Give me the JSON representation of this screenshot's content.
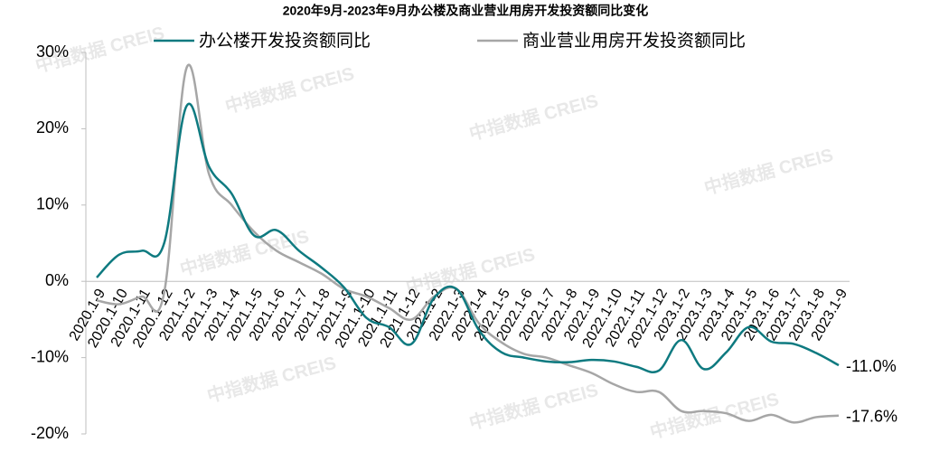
{
  "chart_data": {
    "type": "line",
    "title": "2020年9月-2023年9月办公楼及商业营业用房开发投资额同比变化",
    "watermark": "中指数据 CREIS",
    "categories": [
      "2020.1-9",
      "2020.1-10",
      "2020.1-11",
      "2020.1-12",
      "2021.1-2",
      "2021.1-3",
      "2021.1-4",
      "2021.1-5",
      "2021.1-6",
      "2021.1-7",
      "2021.1-8",
      "2021.1-9",
      "2021.1-10",
      "2021.1-11",
      "2021.1-12",
      "2022.1-2",
      "2022.1-3",
      "2022.1-4",
      "2022.1-5",
      "2022.1-6",
      "2022.1-7",
      "2022.1-8",
      "2022.1-9",
      "2022.1-10",
      "2022.1-11",
      "2022.1-12",
      "2023.1-2",
      "2023.1-3",
      "2023.1-4",
      "2023.1-5",
      "2023.1-6",
      "2023.1-7",
      "2023.1-8",
      "2023.1-9"
    ],
    "series": [
      {
        "name": "办公楼开发投资额同比",
        "color": "#0e7a80",
        "values": [
          0.5,
          3.5,
          4,
          5,
          23,
          15,
          11.5,
          6,
          6.7,
          4,
          1.8,
          -0.8,
          -4.8,
          -6,
          -8.2,
          -2.2,
          -1,
          -6.4,
          -9.3,
          -10,
          -10.5,
          -10.6,
          -10.3,
          -10.5,
          -11.2,
          -11.7,
          -7.7,
          -11.5,
          -9.3,
          -6,
          -7.9,
          -8.2,
          -9.4,
          -11.0
        ],
        "value_labels": [
          null,
          null,
          null,
          null,
          null,
          null,
          null,
          null,
          null,
          null,
          null,
          null,
          null,
          null,
          null,
          null,
          null,
          null,
          null,
          null,
          null,
          null,
          null,
          null,
          null,
          null,
          null,
          null,
          null,
          null,
          null,
          null,
          null,
          "-11.0%"
        ]
      },
      {
        "name": "商业营业用房开发投资额同比",
        "color": "#a6a6a6",
        "values": [
          -2.5,
          -3,
          -2,
          -1.5,
          28,
          14,
          10,
          6.5,
          4,
          2.5,
          1,
          -1,
          -2,
          -3.5,
          -5,
          -2,
          -1,
          -5.5,
          -8,
          -9.5,
          -10,
          -11,
          -12,
          -13.5,
          -14.5,
          -14.5,
          -17,
          -17,
          -17.3,
          -18.3,
          -17.5,
          -18.5,
          -17.8,
          -17.6
        ],
        "value_labels": [
          null,
          null,
          null,
          null,
          null,
          null,
          null,
          null,
          null,
          null,
          null,
          null,
          null,
          null,
          null,
          null,
          null,
          null,
          null,
          null,
          null,
          null,
          null,
          null,
          null,
          null,
          null,
          null,
          null,
          null,
          null,
          null,
          null,
          "-17.6%"
        ]
      }
    ],
    "ylim": [
      -20,
      30
    ],
    "yticks": [
      {
        "value": -20,
        "label": "-20%"
      },
      {
        "value": -10,
        "label": "-10%"
      },
      {
        "value": 0,
        "label": "0%"
      },
      {
        "value": 10,
        "label": "10%"
      },
      {
        "value": 20,
        "label": "20%"
      },
      {
        "value": 30,
        "label": "30%"
      }
    ]
  }
}
